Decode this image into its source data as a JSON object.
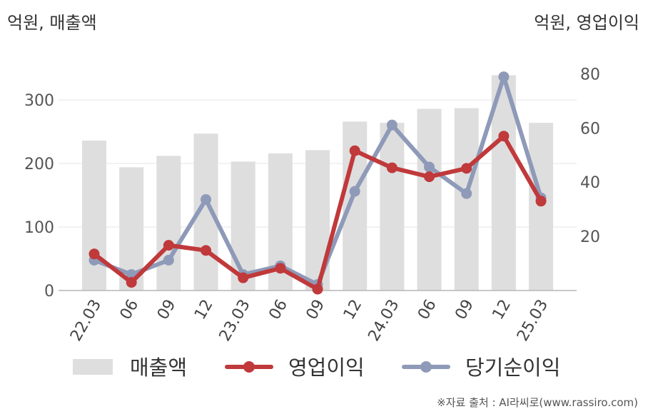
{
  "unit_left": "억원, 매출액",
  "unit_right": "억원, 영업이익",
  "source": "※자료 출처 : AI라씨로(www.rassiro.com)",
  "chart_data": {
    "type": "bar+line",
    "categories": [
      "22.03",
      "06",
      "09",
      "12",
      "23.03",
      "06",
      "09",
      "12",
      "24.03",
      "06",
      "09",
      "12",
      "25.03"
    ],
    "left_axis": {
      "ticks": [
        0,
        100,
        200,
        300
      ],
      "ylim": [
        0,
        345
      ]
    },
    "right_axis": {
      "ticks": [
        20,
        40,
        60,
        80
      ],
      "ylim": [
        0,
        80.9
      ]
    },
    "grid": true,
    "legend_position": "bottom",
    "series": [
      {
        "name": "매출액",
        "type": "bar",
        "axis": "left",
        "color": "#dedede",
        "values": [
          236,
          194,
          212,
          247,
          203,
          216,
          221,
          266,
          264,
          286,
          287,
          339,
          264
        ]
      },
      {
        "name": "영업이익",
        "type": "line",
        "axis": "right",
        "color": "#c0393b",
        "values": [
          13.5,
          3.0,
          16.7,
          14.8,
          4.7,
          8.2,
          0.5,
          51.6,
          45.3,
          42.0,
          45.1,
          57.0,
          33.0
        ]
      },
      {
        "name": "당기순이익",
        "type": "line",
        "axis": "right",
        "color": "#8e9ab8",
        "values": [
          11.2,
          5.9,
          11.2,
          33.6,
          5.9,
          9.1,
          2.2,
          36.6,
          61.1,
          45.6,
          35.8,
          78.9,
          34.2
        ]
      }
    ]
  }
}
